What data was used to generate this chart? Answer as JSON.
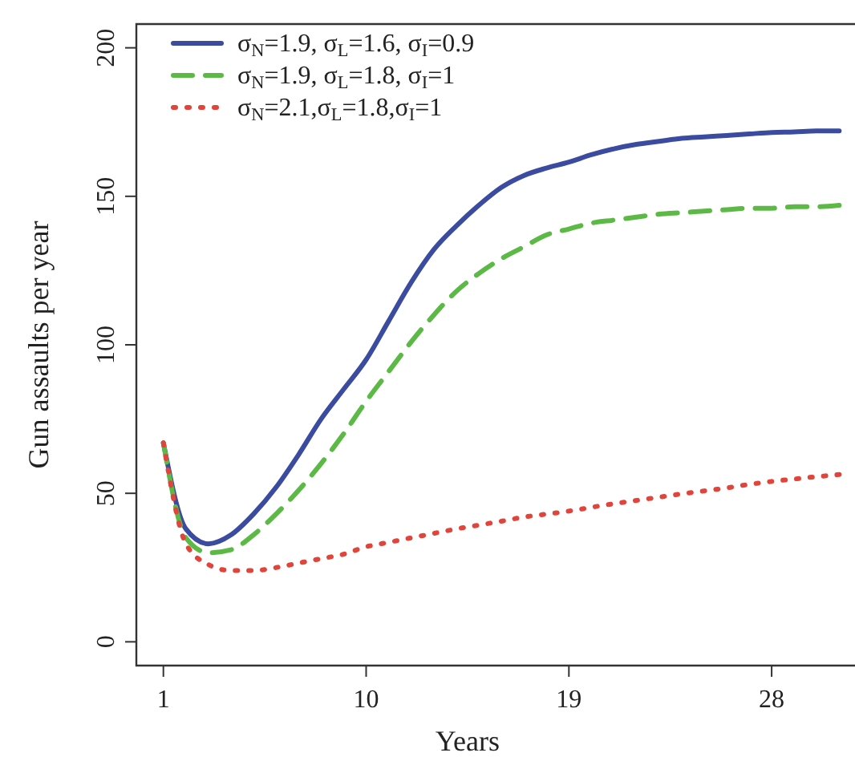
{
  "chart_data": {
    "type": "line",
    "xlabel": "Years",
    "ylabel": "Gun assaults per year",
    "x": [
      1,
      2,
      3,
      4,
      5,
      6,
      7,
      8,
      9,
      10,
      11,
      12,
      13,
      14,
      15,
      16,
      17,
      18,
      19,
      20,
      21,
      22,
      23,
      24,
      25,
      26,
      27,
      28,
      29,
      30,
      31
    ],
    "series": [
      {
        "name": "σ$_{N}$=1.9, σ$_{L}$=1.6, σ$_{I}$=0.9",
        "color": "#3a4ba0",
        "line_style": "solid",
        "values": [
          67,
          38,
          33,
          36,
          43,
          52,
          63,
          75,
          85,
          95,
          108,
          121,
          132,
          140,
          147,
          153,
          157,
          159.5,
          161.5,
          164,
          166,
          167.5,
          168.5,
          169.5,
          170,
          170.5,
          171,
          171.5,
          171.7,
          172,
          172
        ]
      },
      {
        "name": "σ$_{N}$=1.9, σ$_{L}$=1.8, σ$_{I}$=1",
        "color": "#5cb946",
        "line_style": "dashed",
        "values": [
          67,
          35,
          30,
          31,
          36,
          43,
          51,
          60,
          70,
          81,
          91,
          101,
          110,
          118,
          124,
          129,
          133,
          137,
          139,
          141,
          142,
          143,
          144,
          144.5,
          145,
          145.5,
          146,
          146,
          146.5,
          146.5,
          147
        ]
      },
      {
        "name": "σ$_{N}$=2.1,σ$_{L}$=1.8,σ$_{I}$=1",
        "color": "#e0443a",
        "line_style": "dotted",
        "values": [
          67,
          33,
          26,
          24,
          24,
          25,
          26.5,
          28,
          29.5,
          32,
          33.5,
          35,
          36.5,
          38,
          39.3,
          40.6,
          42,
          43,
          44,
          45.3,
          46.5,
          47.6,
          48.7,
          49.8,
          50.8,
          51.8,
          53,
          54,
          54.8,
          55.6,
          56.3
        ]
      }
    ],
    "xlim": [
      -0.2,
      31.7
    ],
    "ylim": [
      -8,
      208
    ],
    "xticks": [
      1,
      10,
      19,
      28
    ],
    "yticks": [
      0,
      50,
      100,
      150,
      200
    ],
    "grid": false,
    "legend": "top left"
  }
}
